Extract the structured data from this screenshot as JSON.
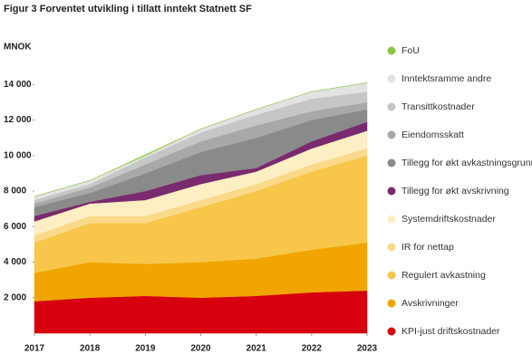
{
  "chart_data": {
    "type": "stacked_area",
    "title": "Figur 3   Forventet utvikling i tillatt inntekt Statnett SF",
    "y_label": "MNOK",
    "x": [
      2017,
      2018,
      2019,
      2020,
      2021,
      2022,
      2023
    ],
    "xlim": [
      2017,
      2023
    ],
    "xticks": [
      2017,
      2018,
      2019,
      2020,
      2021,
      2022,
      2023
    ],
    "ylim": [
      0,
      15700
    ],
    "yticks": [
      {
        "value": 2000,
        "label": "2 000"
      },
      {
        "value": 4000,
        "label": "4 000"
      },
      {
        "value": 6000,
        "label": "6 000"
      },
      {
        "value": 8000,
        "label": "8 000"
      },
      {
        "value": 10000,
        "label": "10 000"
      },
      {
        "value": 12000,
        "label": "12 000"
      },
      {
        "value": 14000,
        "label": "14 000"
      }
    ],
    "legend": "right",
    "series": [
      {
        "name": "FoU",
        "color": "#8dc63f",
        "values": [
          0,
          0,
          50,
          0,
          0,
          0,
          0
        ]
      },
      {
        "name": "Inntektsramme andre",
        "color": "#e2e2e2",
        "values": [
          200,
          200,
          100,
          200,
          300,
          400,
          500
        ]
      },
      {
        "name": "Transittkostnader",
        "color": "#c6c6c6",
        "values": [
          200,
          200,
          400,
          500,
          600,
          700,
          600
        ]
      },
      {
        "name": "Eiendomsskatt",
        "color": "#a8a8a8",
        "values": [
          200,
          300,
          500,
          600,
          700,
          500,
          400
        ]
      },
      {
        "name": "Tillegg for økt avkastningsgrunnlag",
        "color": "#8a8a8a",
        "values": [
          500,
          500,
          1000,
          1300,
          1700,
          1200,
          700
        ]
      },
      {
        "name": "Tillegg for økt avskrivning",
        "color": "#7a2a6e",
        "values": [
          300,
          100,
          500,
          500,
          200,
          400,
          500
        ]
      },
      {
        "name": "Systemdriftskostnader",
        "color": "#fdeec4",
        "values": [
          800,
          700,
          900,
          900,
          700,
          900,
          1000
        ]
      },
      {
        "name": "IR for nettap",
        "color": "#fad98a",
        "values": [
          400,
          400,
          400,
          400,
          400,
          400,
          400
        ]
      },
      {
        "name": "Regulert avkastning",
        "color": "#f7c64a",
        "values": [
          1700,
          2200,
          2300,
          3100,
          3800,
          4400,
          4900
        ]
      },
      {
        "name": "Avskrivninger",
        "color": "#f0a500",
        "values": [
          1600,
          2000,
          1800,
          2000,
          2100,
          2400,
          2700
        ]
      },
      {
        "name": "KPI-just driftskostnader",
        "color": "#d7000f",
        "values": [
          1800,
          2000,
          2100,
          2000,
          2100,
          2300,
          2400
        ]
      }
    ]
  }
}
